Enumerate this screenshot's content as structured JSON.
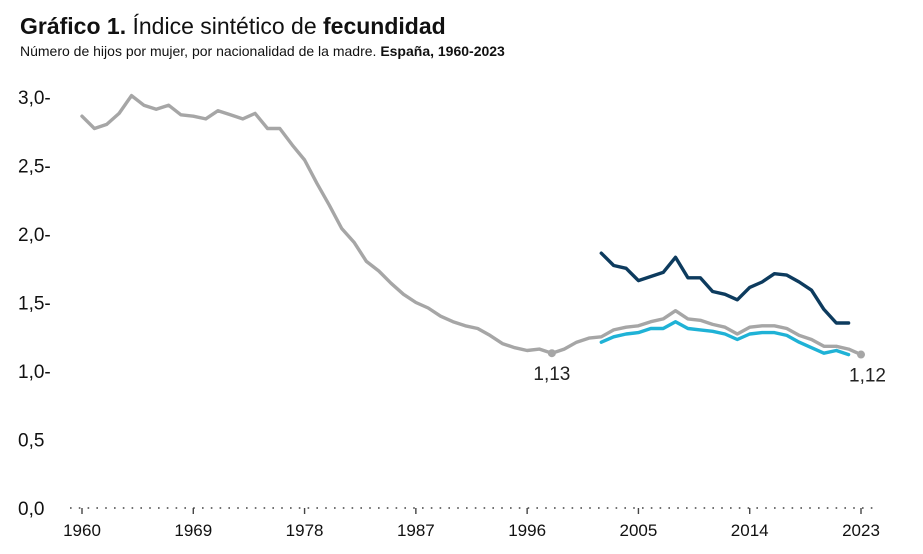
{
  "header": {
    "title_bold": "Gráfico 1.",
    "title_regular": " Índice sintético de ",
    "title_bold_2": "fecundidad",
    "subtitle_regular": "Número de hijos por mujer, por nacionalidad de la madre. ",
    "subtitle_bold": "España, 1960-2023"
  },
  "chart_data": {
    "type": "line",
    "title": "Gráfico 1. Índice sintético de fecundidad",
    "subtitle": "Número de hijos por mujer, por nacionalidad de la madre. España, 1960-2023",
    "xlabel": "",
    "ylabel": "",
    "xlim": [
      1960,
      2023
    ],
    "ylim": [
      0,
      3.0
    ],
    "y_ticks": [
      0,
      0.5,
      1.0,
      1.5,
      2.0,
      2.5,
      3.0
    ],
    "y_tick_labels": [
      "0,0",
      "0,5",
      "1,0-",
      "1,5-",
      "2,0-",
      "2,5-",
      "3,0-"
    ],
    "x_ticks": [
      1960,
      1969,
      1978,
      1987,
      1996,
      2005,
      2014,
      2023
    ],
    "x_tick_labels": [
      "1960",
      "1969",
      "1978",
      "1987",
      "1996",
      "2005",
      "2014",
      "2023"
    ],
    "grid": false,
    "legend": "none",
    "series": [
      {
        "color": "#a6a6a6",
        "x": [
          1960,
          1961,
          1962,
          1963,
          1964,
          1965,
          1966,
          1967,
          1968,
          1969,
          1970,
          1971,
          1972,
          1973,
          1974,
          1975,
          1976,
          1977,
          1978,
          1979,
          1980,
          1981,
          1982,
          1983,
          1984,
          1985,
          1986,
          1987,
          1988,
          1989,
          1990,
          1991,
          1992,
          1993,
          1994,
          1995,
          1996,
          1997,
          1998,
          1999,
          2000,
          2001,
          2002,
          2003,
          2004,
          2005,
          2006,
          2007,
          2008,
          2009,
          2010,
          2011,
          2012,
          2013,
          2014,
          2015,
          2016,
          2017,
          2018,
          2019,
          2020,
          2021,
          2022,
          2023
        ],
        "y": [
          2.86,
          2.77,
          2.8,
          2.88,
          3.01,
          2.94,
          2.91,
          2.94,
          2.87,
          2.86,
          2.84,
          2.9,
          2.87,
          2.84,
          2.88,
          2.77,
          2.77,
          2.65,
          2.54,
          2.37,
          2.21,
          2.04,
          1.94,
          1.8,
          1.73,
          1.64,
          1.56,
          1.5,
          1.46,
          1.4,
          1.36,
          1.33,
          1.31,
          1.26,
          1.2,
          1.17,
          1.15,
          1.16,
          1.13,
          1.16,
          1.21,
          1.24,
          1.25,
          1.3,
          1.32,
          1.33,
          1.36,
          1.38,
          1.44,
          1.38,
          1.37,
          1.34,
          1.32,
          1.27,
          1.32,
          1.33,
          1.33,
          1.31,
          1.26,
          1.23,
          1.18,
          1.18,
          1.16,
          1.12
        ]
      },
      {
        "color": "#0d3b5e",
        "x": [
          2002,
          2003,
          2004,
          2005,
          2006,
          2007,
          2008,
          2009,
          2010,
          2011,
          2012,
          2013,
          2014,
          2015,
          2016,
          2017,
          2018,
          2019,
          2020,
          2021,
          2022
        ],
        "y": [
          1.86,
          1.77,
          1.75,
          1.66,
          1.69,
          1.72,
          1.83,
          1.68,
          1.68,
          1.58,
          1.56,
          1.52,
          1.61,
          1.65,
          1.71,
          1.7,
          1.65,
          1.59,
          1.45,
          1.35,
          1.35
        ]
      },
      {
        "color": "#1fb2d6",
        "x": [
          2002,
          2003,
          2004,
          2005,
          2006,
          2007,
          2008,
          2009,
          2010,
          2011,
          2012,
          2013,
          2014,
          2015,
          2016,
          2017,
          2018,
          2019,
          2020,
          2021,
          2022
        ],
        "y": [
          1.21,
          1.25,
          1.27,
          1.28,
          1.31,
          1.31,
          1.36,
          1.31,
          1.3,
          1.29,
          1.27,
          1.23,
          1.27,
          1.28,
          1.28,
          1.26,
          1.21,
          1.17,
          1.13,
          1.15,
          1.12
        ]
      }
    ],
    "annotations": [
      {
        "x": 1998,
        "y": 1.13,
        "label": "1,13"
      },
      {
        "x": 2023,
        "y": 1.12,
        "label": "1,12"
      }
    ]
  }
}
